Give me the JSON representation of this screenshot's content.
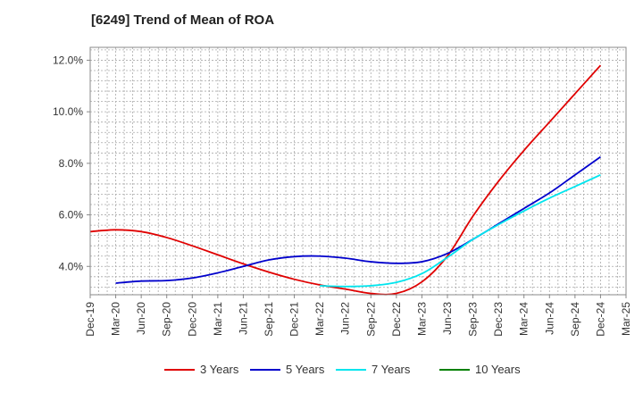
{
  "chart_data": {
    "type": "line",
    "title": "[6249]  Trend of Mean of ROA",
    "xlabel": "",
    "ylabel": "",
    "x_ticks": [
      "Dec-19",
      "Mar-20",
      "Jun-20",
      "Sep-20",
      "Dec-20",
      "Mar-21",
      "Jun-21",
      "Sep-21",
      "Dec-21",
      "Mar-22",
      "Jun-22",
      "Sep-22",
      "Dec-22",
      "Mar-23",
      "Jun-23",
      "Sep-23",
      "Dec-23",
      "Mar-24",
      "Jun-24",
      "Sep-24",
      "Dec-24",
      "Mar-25"
    ],
    "y_ticks": [
      4.0,
      6.0,
      8.0,
      10.0,
      12.0
    ],
    "y_tick_format": "percent_1dp",
    "ylim": [
      2.9,
      12.5
    ],
    "grid": true,
    "legend_position": "bottom",
    "series": [
      {
        "name": "3 Years",
        "color": "#e00000",
        "points": [
          [
            "Dec-19",
            5.35
          ],
          [
            "Mar-20",
            5.42
          ],
          [
            "Jun-20",
            5.35
          ],
          [
            "Sep-20",
            5.12
          ],
          [
            "Dec-20",
            4.8
          ],
          [
            "Mar-21",
            4.45
          ],
          [
            "Jun-21",
            4.1
          ],
          [
            "Sep-21",
            3.78
          ],
          [
            "Dec-21",
            3.5
          ],
          [
            "Mar-22",
            3.28
          ],
          [
            "Jun-22",
            3.12
          ],
          [
            "Sep-22",
            2.95
          ],
          [
            "Dec-22",
            2.95
          ],
          [
            "Mar-23",
            3.4
          ],
          [
            "Jun-23",
            4.4
          ],
          [
            "Sep-23",
            5.95
          ],
          [
            "Dec-23",
            7.3
          ],
          [
            "Mar-24",
            8.5
          ],
          [
            "Jun-24",
            9.6
          ],
          [
            "Sep-24",
            10.7
          ],
          [
            "Dec-24",
            11.8
          ]
        ]
      },
      {
        "name": "5 Years",
        "color": "#0000cc",
        "points": [
          [
            "Mar-20",
            3.35
          ],
          [
            "Jun-20",
            3.43
          ],
          [
            "Sep-20",
            3.45
          ],
          [
            "Dec-20",
            3.55
          ],
          [
            "Mar-21",
            3.75
          ],
          [
            "Jun-21",
            4.0
          ],
          [
            "Sep-21",
            4.25
          ],
          [
            "Dec-21",
            4.38
          ],
          [
            "Mar-22",
            4.4
          ],
          [
            "Jun-22",
            4.32
          ],
          [
            "Sep-22",
            4.18
          ],
          [
            "Dec-22",
            4.12
          ],
          [
            "Mar-23",
            4.18
          ],
          [
            "Jun-23",
            4.5
          ],
          [
            "Sep-23",
            5.05
          ],
          [
            "Dec-23",
            5.65
          ],
          [
            "Mar-24",
            6.25
          ],
          [
            "Jun-24",
            6.85
          ],
          [
            "Sep-24",
            7.55
          ],
          [
            "Dec-24",
            8.25
          ]
        ]
      },
      {
        "name": "7 Years",
        "color": "#00e5ee",
        "points": [
          [
            "Mar-22",
            3.25
          ],
          [
            "Jun-22",
            3.22
          ],
          [
            "Sep-22",
            3.25
          ],
          [
            "Dec-22",
            3.38
          ],
          [
            "Mar-23",
            3.72
          ],
          [
            "Jun-23",
            4.35
          ],
          [
            "Sep-23",
            5.05
          ],
          [
            "Dec-23",
            5.62
          ],
          [
            "Mar-24",
            6.15
          ],
          [
            "Jun-24",
            6.65
          ],
          [
            "Sep-24",
            7.1
          ],
          [
            "Dec-24",
            7.55
          ]
        ]
      },
      {
        "name": "10 Years",
        "color": "#008000",
        "points": []
      }
    ]
  }
}
